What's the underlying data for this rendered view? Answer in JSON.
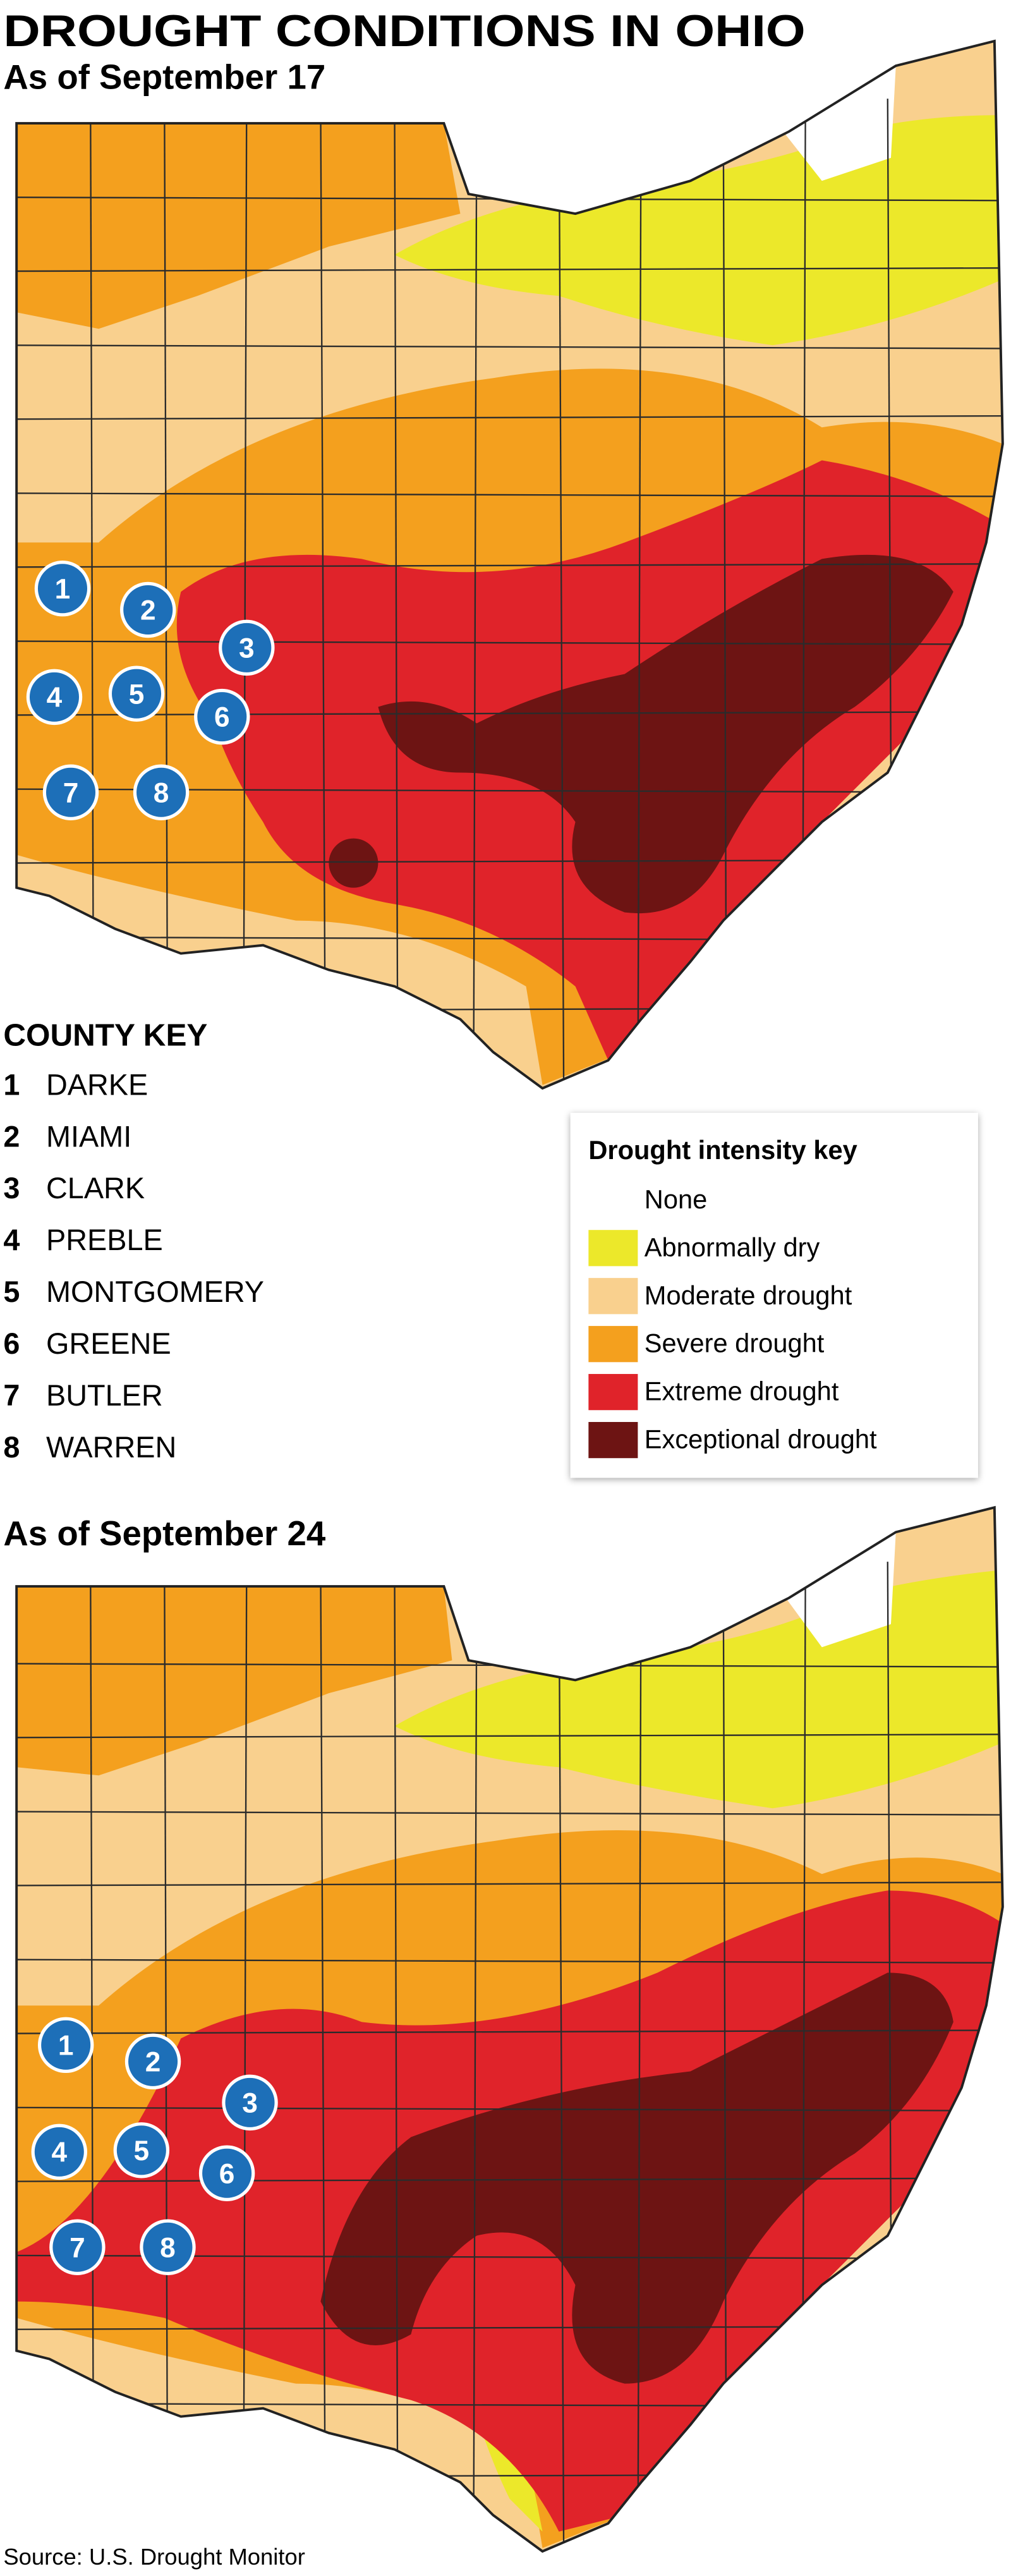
{
  "header": {
    "title": "DROUGHT CONDITIONS IN OHIO"
  },
  "maps": [
    {
      "subtitle": "As of September 17"
    },
    {
      "subtitle": "As of September 24"
    }
  ],
  "county_key": {
    "title": "COUNTY KEY",
    "items": [
      {
        "number": 1,
        "name": "DARKE"
      },
      {
        "number": 2,
        "name": "MIAMI"
      },
      {
        "number": 3,
        "name": "CLARK"
      },
      {
        "number": 4,
        "name": "PREBLE"
      },
      {
        "number": 5,
        "name": "MONTGOMERY"
      },
      {
        "number": 6,
        "name": "GREENE"
      },
      {
        "number": 7,
        "name": "BUTLER"
      },
      {
        "number": 8,
        "name": "WARREN"
      }
    ]
  },
  "legend": {
    "title": "Drought intensity key",
    "items": [
      {
        "label": "None",
        "color": "#ffffff"
      },
      {
        "label": "Abnormally dry",
        "color": "#ece82a"
      },
      {
        "label": "Moderate drought",
        "color": "#f9d08e"
      },
      {
        "label": "Severe drought",
        "color": "#f4a01e"
      },
      {
        "label": "Extreme drought",
        "color": "#e0232a"
      },
      {
        "label": "Exceptional drought",
        "color": "#6d1413"
      }
    ]
  },
  "source": "Source: U.S. Drought Monitor"
}
